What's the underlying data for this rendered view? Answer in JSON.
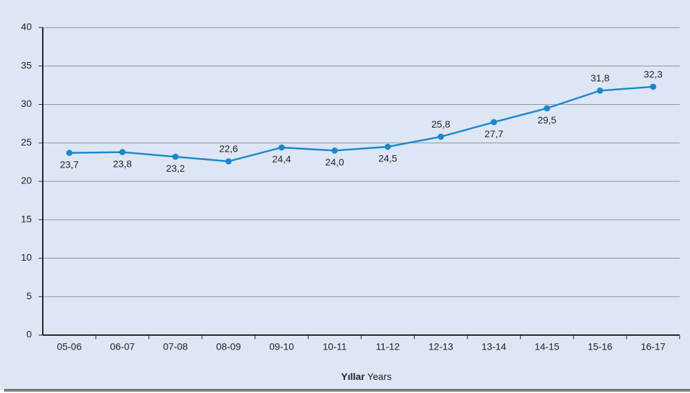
{
  "chart_data": {
    "type": "line",
    "categories": [
      "05-06",
      "06-07",
      "07-08",
      "08-09",
      "09-10",
      "10-11",
      "11-12",
      "12-13",
      "13-14",
      "14-15",
      "15-16",
      "16-17"
    ],
    "series": [
      {
        "color": "#1a87cc",
        "values": [
          23.7,
          23.8,
          23.2,
          22.6,
          24.4,
          24.0,
          24.5,
          25.8,
          27.7,
          29.5,
          31.8,
          32.3
        ],
        "value_labels": [
          "23,7",
          "23,8",
          "23,2",
          "22,6",
          "24,4",
          "24,0",
          "24,5",
          "25,8",
          "27,7",
          "29,5",
          "31,8",
          "32,3"
        ]
      }
    ],
    "ylim": [
      0,
      40
    ],
    "yticks": [
      0,
      5,
      10,
      15,
      20,
      25,
      30,
      35,
      40
    ],
    "grid": true,
    "x_label": {
      "bold": "Yıllar",
      "regular": "Years"
    }
  }
}
